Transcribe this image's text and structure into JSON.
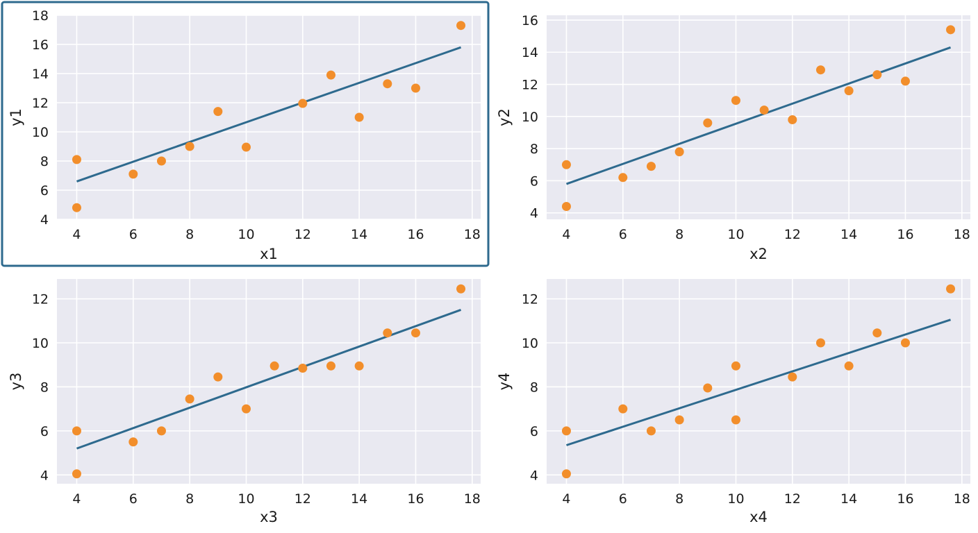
{
  "accent": "#2e6a8e",
  "point_color": "#f28e2b",
  "plot_background": "#e9e9f1",
  "selected_panel": 0,
  "chart_data": [
    {
      "type": "scatter",
      "xlabel": "x1",
      "ylabel": "y1",
      "xlim": [
        3.3,
        18.3
      ],
      "ylim": [
        4,
        18
      ],
      "xticks": [
        4,
        6,
        8,
        10,
        12,
        14,
        16,
        18
      ],
      "yticks": [
        4,
        6,
        8,
        10,
        12,
        14,
        16,
        18
      ],
      "grid": true,
      "points": {
        "x": [
          4,
          4,
          6,
          7,
          8,
          9,
          10,
          12,
          13,
          14,
          15,
          16,
          17.6
        ],
        "y": [
          8.1,
          4.8,
          7.1,
          8.0,
          9.0,
          11.4,
          8.95,
          11.95,
          13.9,
          11.0,
          13.3,
          13.0,
          17.3
        ]
      },
      "fit_line": {
        "x": [
          4,
          17.6
        ],
        "y": [
          6.6,
          15.8
        ]
      }
    },
    {
      "type": "scatter",
      "xlabel": "x2",
      "ylabel": "y2",
      "xlim": [
        3.3,
        18.3
      ],
      "ylim": [
        3.6,
        16.3
      ],
      "xticks": [
        4,
        6,
        8,
        10,
        12,
        14,
        16,
        18
      ],
      "yticks": [
        4,
        6,
        8,
        10,
        12,
        14,
        16
      ],
      "grid": true,
      "points": {
        "x": [
          4,
          4,
          6,
          7,
          8,
          9,
          10,
          11,
          12,
          13,
          14,
          15,
          16,
          17.6
        ],
        "y": [
          7.0,
          4.4,
          6.2,
          6.9,
          7.8,
          9.6,
          11.0,
          10.4,
          9.8,
          12.9,
          11.6,
          12.6,
          12.2,
          15.4
        ]
      },
      "fit_line": {
        "x": [
          4,
          17.6
        ],
        "y": [
          5.8,
          14.3
        ]
      }
    },
    {
      "type": "scatter",
      "xlabel": "x3",
      "ylabel": "y3",
      "xlim": [
        3.3,
        18.3
      ],
      "ylim": [
        3.6,
        12.9
      ],
      "xticks": [
        4,
        6,
        8,
        10,
        12,
        14,
        16,
        18
      ],
      "yticks": [
        4,
        6,
        8,
        10,
        12
      ],
      "grid": true,
      "points": {
        "x": [
          4,
          4,
          6,
          7,
          8,
          9,
          10,
          11,
          12,
          13,
          14,
          15,
          16,
          17.6
        ],
        "y": [
          6.0,
          4.05,
          5.5,
          6.0,
          7.45,
          8.45,
          7.0,
          8.95,
          8.85,
          8.95,
          8.95,
          10.45,
          10.45,
          12.45
        ]
      },
      "fit_line": {
        "x": [
          4,
          17.6
        ],
        "y": [
          5.2,
          11.5
        ]
      }
    },
    {
      "type": "scatter",
      "xlabel": "x4",
      "ylabel": "y4",
      "xlim": [
        3.3,
        18.3
      ],
      "ylim": [
        3.6,
        12.9
      ],
      "xticks": [
        4,
        6,
        8,
        10,
        12,
        14,
        16,
        18
      ],
      "yticks": [
        4,
        6,
        8,
        10,
        12
      ],
      "grid": true,
      "points": {
        "x": [
          4,
          4,
          6,
          7,
          8,
          9,
          10,
          10,
          12,
          13,
          14,
          15,
          16,
          17.6
        ],
        "y": [
          6.0,
          4.05,
          7.0,
          6.0,
          6.5,
          7.95,
          8.95,
          6.5,
          8.45,
          10.0,
          8.95,
          10.45,
          10.0,
          12.45
        ]
      },
      "fit_line": {
        "x": [
          4,
          17.6
        ],
        "y": [
          5.35,
          11.05
        ]
      }
    }
  ]
}
